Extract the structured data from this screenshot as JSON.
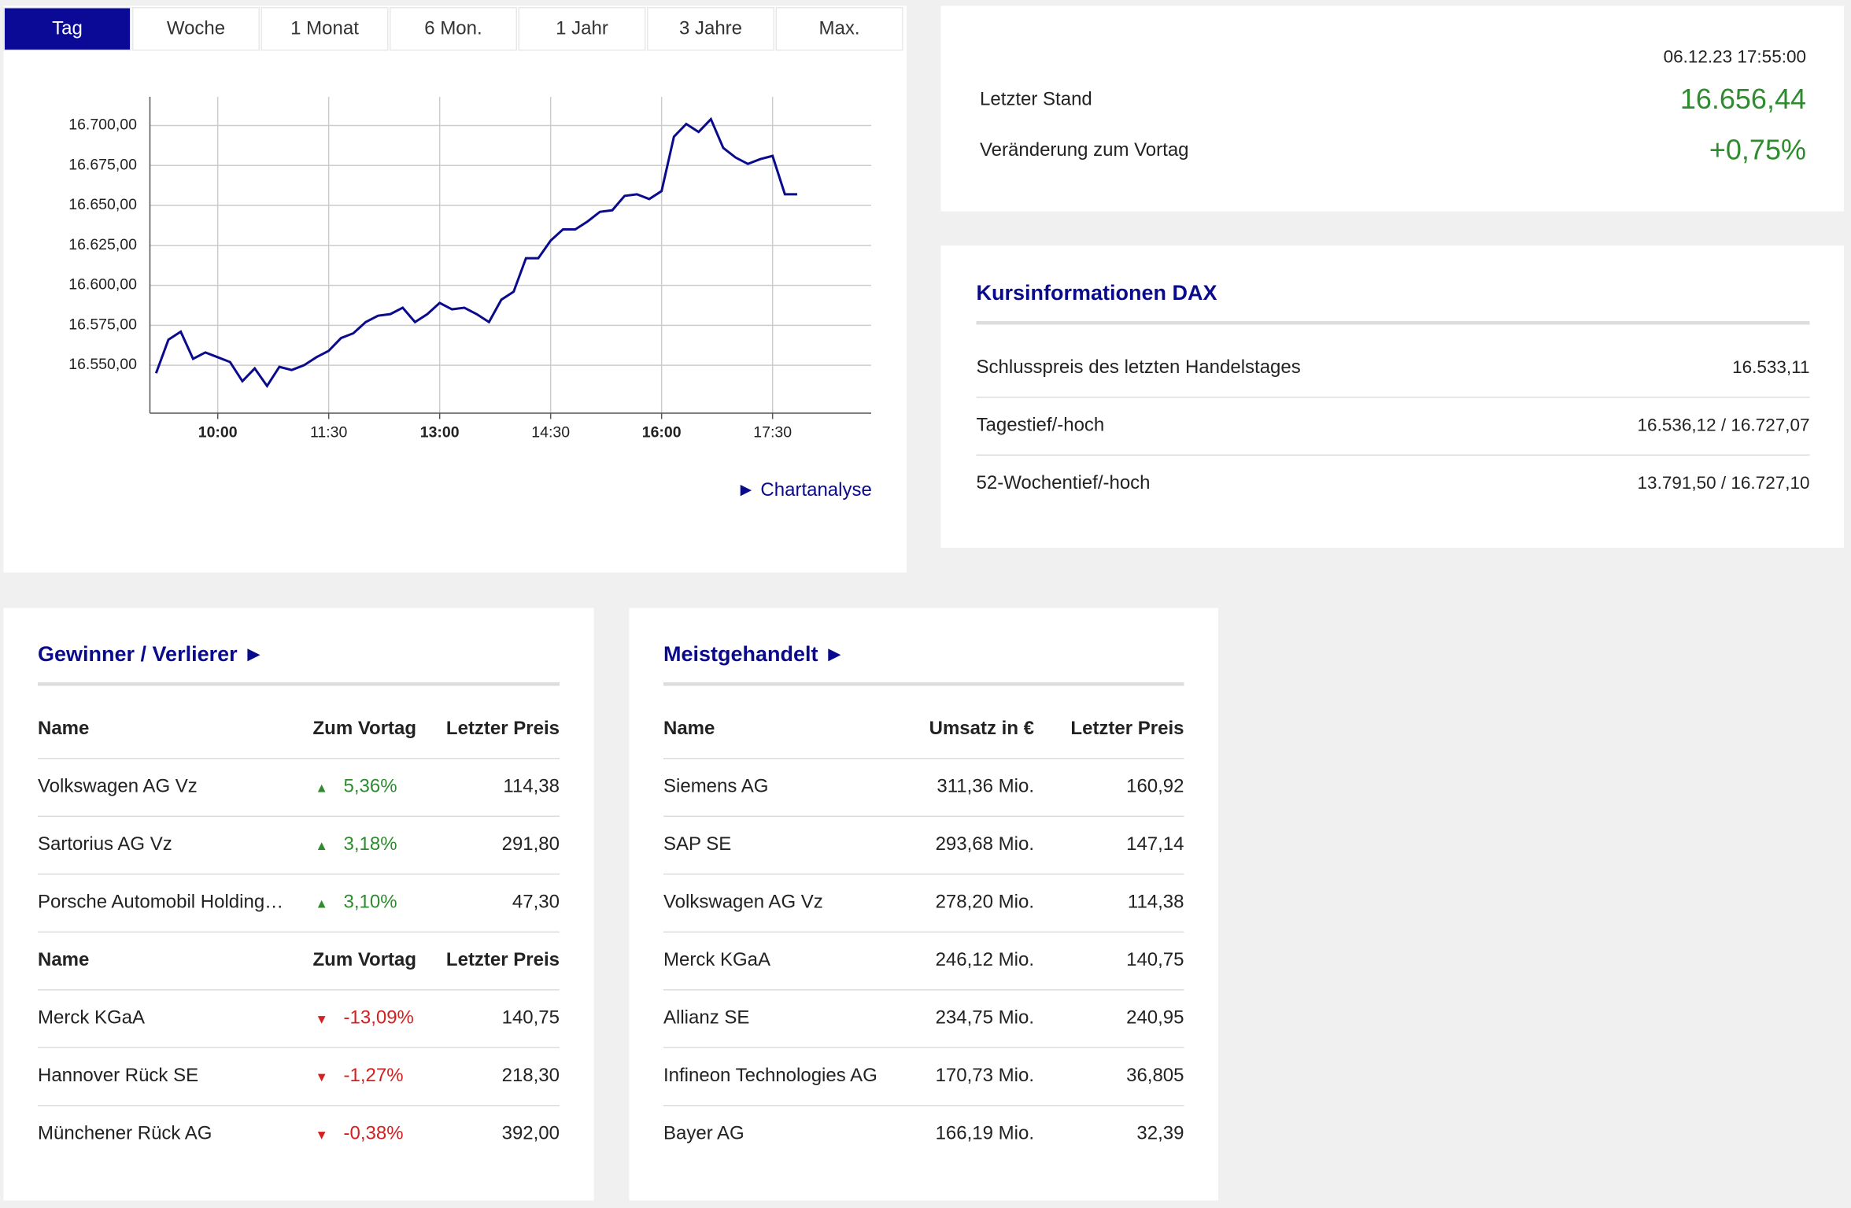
{
  "tabs": [
    "Tag",
    "Woche",
    "1 Monat",
    "6 Mon.",
    "1 Jahr",
    "3 Jahre",
    "Max."
  ],
  "chart_data": {
    "type": "line",
    "color": "#0a0a8c",
    "grid": true,
    "x": [
      "09:10",
      "09:20",
      "09:30",
      "09:40",
      "09:50",
      "10:00",
      "10:10",
      "10:20",
      "10:30",
      "10:40",
      "10:50",
      "11:00",
      "11:10",
      "11:20",
      "11:30",
      "11:40",
      "11:50",
      "12:00",
      "12:10",
      "12:20",
      "12:30",
      "12:40",
      "12:50",
      "13:00",
      "13:10",
      "13:20",
      "13:30",
      "13:40",
      "13:50",
      "14:00",
      "14:10",
      "14:20",
      "14:30",
      "14:40",
      "14:50",
      "15:00",
      "15:10",
      "15:20",
      "15:30",
      "15:40",
      "15:50",
      "16:00",
      "16:10",
      "16:20",
      "16:30",
      "16:40",
      "16:50",
      "17:00",
      "17:10",
      "17:20",
      "17:30",
      "17:40",
      "17:50"
    ],
    "values": [
      16545,
      16566,
      16571,
      16554,
      16558,
      16555,
      16552,
      16540,
      16548,
      16537,
      16549,
      16547,
      16550,
      16555,
      16559,
      16567,
      16570,
      16577,
      16581,
      16582,
      16586,
      16577,
      16582,
      16589,
      16585,
      16586,
      16582,
      16577,
      16591,
      16596,
      16617,
      16617,
      16628,
      16635,
      16635,
      16640,
      16646,
      16647,
      16656,
      16657,
      16654,
      16659,
      16693,
      16701,
      16696,
      16704,
      16686,
      16680,
      16676,
      16679,
      16681,
      16657,
      16657
    ],
    "xlim": [
      "09:05",
      "18:50"
    ],
    "ylim": [
      16520,
      16718
    ],
    "xticks": [
      "10:00",
      "11:30",
      "13:00",
      "14:30",
      "16:00",
      "17:30"
    ],
    "yticks": [
      {
        "value": 16550,
        "label": "16.550,00"
      },
      {
        "value": 16575,
        "label": "16.575,00"
      },
      {
        "value": 16600,
        "label": "16.600,00"
      },
      {
        "value": 16625,
        "label": "16.625,00"
      },
      {
        "value": 16650,
        "label": "16.650,00"
      },
      {
        "value": 16675,
        "label": "16.675,00"
      },
      {
        "value": 16700,
        "label": "16.700,00"
      }
    ]
  },
  "chart_link": "Chartanalyse",
  "quote": {
    "timestamp": "06.12.23 17:55:00",
    "last_label": "Letzter Stand",
    "last_value": "16.656,44",
    "change_label": "Veränderung zum Vortag",
    "change_value": "+0,75%"
  },
  "info": {
    "title": "Kursinformationen DAX",
    "rows": [
      [
        "Schlusspreis des letzten Handelstages",
        "16.533,11"
      ],
      [
        "Tagestief/-hoch",
        "16.536,12 / 16.727,07"
      ],
      [
        "52-Wochentief/-hoch",
        "13.791,50 / 16.727,10"
      ]
    ]
  },
  "movers": {
    "title": "Gewinner / Verlierer",
    "groups": [
      {
        "header": [
          "Name",
          "Zum Vortag",
          "Letzter Preis"
        ],
        "rows": [
          [
            "Volkswagen AG Vz",
            "5,36%",
            "114,38"
          ],
          [
            "Sartorius AG Vz",
            "3,18%",
            "291,80"
          ],
          [
            "Porsche Automobil Holding…",
            "3,10%",
            "47,30"
          ]
        ]
      },
      {
        "header": [
          "Name",
          "Zum Vortag",
          "Letzter Preis"
        ],
        "rows": [
          [
            "Merck KGaA",
            "-13,09%",
            "140,75"
          ],
          [
            "Hannover Rück SE",
            "-1,27%",
            "218,30"
          ],
          [
            "Münchener Rück AG",
            "-0,38%",
            "392,00"
          ]
        ]
      }
    ]
  },
  "most": {
    "title": "Meistgehandelt",
    "header": [
      "Name",
      "Umsatz in €",
      "Letzter Preis"
    ],
    "rows": [
      [
        "Siemens AG",
        "311,36 Mio.",
        "160,92"
      ],
      [
        "SAP SE",
        "293,68 Mio.",
        "147,14"
      ],
      [
        "Volkswagen AG Vz",
        "278,20 Mio.",
        "114,38"
      ],
      [
        "Merck KGaA",
        "246,12 Mio.",
        "140,75"
      ],
      [
        "Allianz SE",
        "234,75 Mio.",
        "240,95"
      ],
      [
        "Infineon Technologies AG",
        "170,73 Mio.",
        "36,805"
      ],
      [
        "Bayer AG",
        "166,19 Mio.",
        "32,39"
      ]
    ]
  }
}
